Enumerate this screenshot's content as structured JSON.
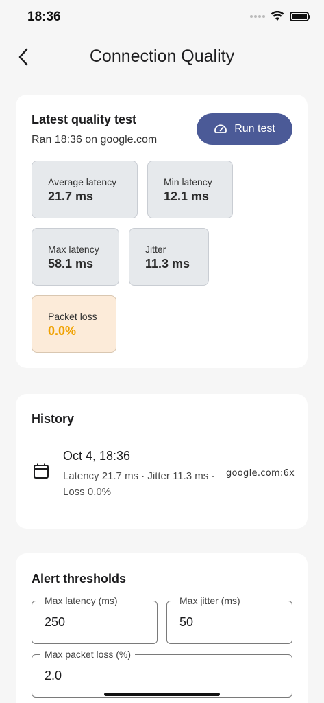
{
  "status_bar": {
    "time": "18:36"
  },
  "nav": {
    "title": "Connection Quality"
  },
  "latest": {
    "title": "Latest quality test",
    "subtitle": "Ran 18:36 on google.com",
    "run_button": "Run test",
    "metrics": [
      {
        "label": "Average latency",
        "value": "21.7 ms"
      },
      {
        "label": "Min latency",
        "value": "12.1 ms"
      },
      {
        "label": "Max latency",
        "value": "58.1 ms"
      },
      {
        "label": "Jitter",
        "value": "11.3 ms"
      },
      {
        "label": "Packet loss",
        "value": "0.0%"
      }
    ],
    "packet_loss_color": "#f0a100"
  },
  "history": {
    "title": "History",
    "items": [
      {
        "date": "Oct 4, 18:36",
        "detail": "Latency 21.7 ms · Jitter 11.3 ms · Loss 0.0%",
        "host": "google.com:6x"
      }
    ]
  },
  "alerts": {
    "title": "Alert thresholds",
    "fields": [
      {
        "label": "Max latency (ms)",
        "value": "250"
      },
      {
        "label": "Max jitter (ms)",
        "value": "50"
      },
      {
        "label": "Max packet loss (%)",
        "value": "2.0"
      }
    ]
  },
  "colors": {
    "accent": "#4b5a97",
    "background": "#f6f6f6",
    "metric_bg": "#e6e9ec",
    "warn_bg": "#fcebd9"
  }
}
